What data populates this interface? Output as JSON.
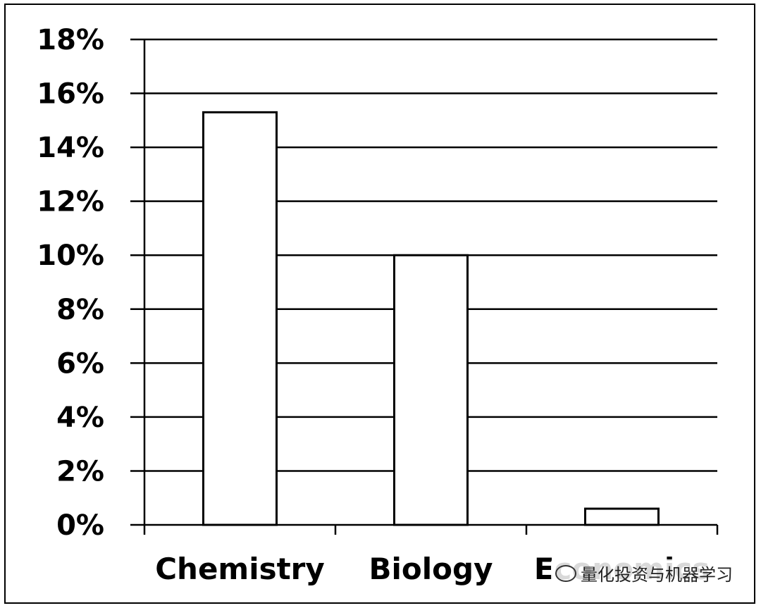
{
  "chart_data": {
    "type": "bar",
    "categories": [
      "Chemistry",
      "Biology",
      "Economics"
    ],
    "values": [
      15.3,
      10.0,
      0.6
    ],
    "yticks": [
      "0%",
      "2%",
      "4%",
      "6%",
      "8%",
      "10%",
      "12%",
      "14%",
      "16%",
      "18%"
    ],
    "ylim": [
      0,
      18
    ],
    "title": "",
    "xlabel": "",
    "ylabel": "",
    "grid": true,
    "bar_fill": "#ffffff",
    "bar_stroke": "#000000"
  },
  "watermark": {
    "text": "量化投资与机器学习",
    "icon": "wechat-icon"
  }
}
